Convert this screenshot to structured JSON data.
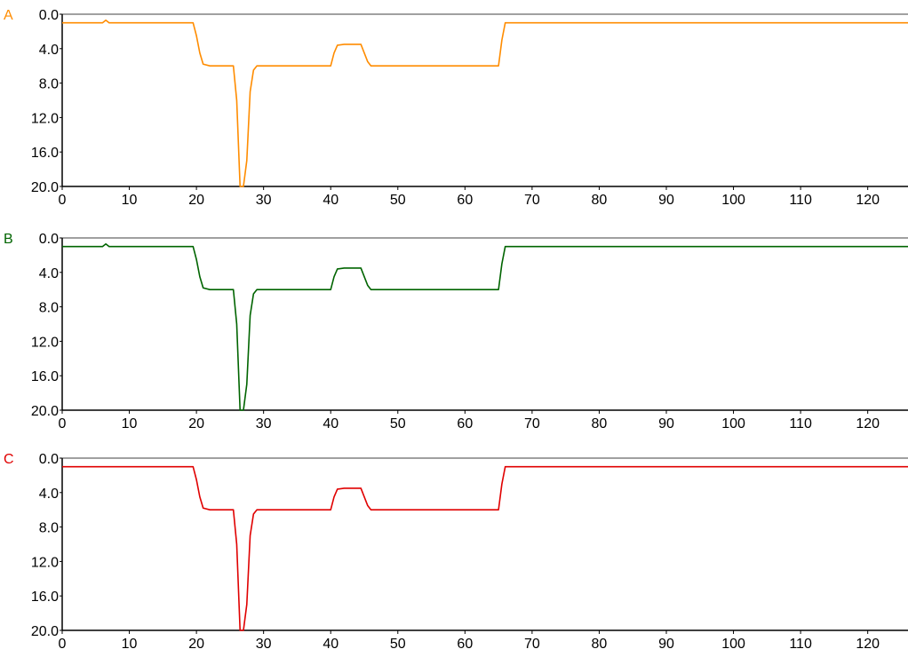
{
  "chart_data": [
    {
      "type": "line",
      "label": "A",
      "color": "#ff8c00",
      "xlim": [
        0,
        126
      ],
      "ylim": [
        0.0,
        20.0
      ],
      "y_inverted": true,
      "xticks": [
        0,
        10,
        20,
        30,
        40,
        50,
        60,
        70,
        80,
        90,
        100,
        110,
        120
      ],
      "yticks": [
        "0.0",
        "4.0",
        "8.0",
        "12.0",
        "16.0",
        "20.0"
      ],
      "grid": false,
      "series": [
        {
          "x": [
            0,
            6,
            6.5,
            7,
            19.5,
            20,
            20.5,
            21,
            22,
            25.5,
            26,
            26.5,
            27,
            27.5,
            28,
            28.5,
            29,
            40,
            40.5,
            41,
            42,
            44.5,
            45.5,
            46,
            65,
            65.5,
            66,
            126
          ],
          "y": [
            1.0,
            1.0,
            0.7,
            1.0,
            1.0,
            2.5,
            4.5,
            5.8,
            6.0,
            6.0,
            10.0,
            20.0,
            20.0,
            17.0,
            9.0,
            6.5,
            6.0,
            6.0,
            4.5,
            3.6,
            3.5,
            3.5,
            5.5,
            6.0,
            6.0,
            3.0,
            1.0,
            1.0
          ]
        }
      ]
    },
    {
      "type": "line",
      "label": "B",
      "color": "#006400",
      "xlim": [
        0,
        126
      ],
      "ylim": [
        0.0,
        20.0
      ],
      "y_inverted": true,
      "xticks": [
        0,
        10,
        20,
        30,
        40,
        50,
        60,
        70,
        80,
        90,
        100,
        110,
        120
      ],
      "yticks": [
        "0.0",
        "4.0",
        "8.0",
        "12.0",
        "16.0",
        "20.0"
      ],
      "grid": false,
      "series": [
        {
          "x": [
            0,
            6,
            6.5,
            7,
            19.5,
            20,
            20.5,
            21,
            22,
            25.5,
            26,
            26.5,
            27,
            27.5,
            28,
            28.5,
            29,
            40,
            40.5,
            41,
            42,
            44.5,
            45.5,
            46,
            65,
            65.5,
            66,
            126
          ],
          "y": [
            1.0,
            1.0,
            0.7,
            1.0,
            1.0,
            2.5,
            4.5,
            5.8,
            6.0,
            6.0,
            10.0,
            20.0,
            20.0,
            17.0,
            9.0,
            6.5,
            6.0,
            6.0,
            4.5,
            3.6,
            3.5,
            3.5,
            5.5,
            6.0,
            6.0,
            3.0,
            1.0,
            1.0
          ]
        }
      ]
    },
    {
      "type": "line",
      "label": "C",
      "color": "#e00000",
      "xlim": [
        0,
        126
      ],
      "ylim": [
        0.0,
        20.0
      ],
      "y_inverted": true,
      "xticks": [
        0,
        10,
        20,
        30,
        40,
        50,
        60,
        70,
        80,
        90,
        100,
        110,
        120
      ],
      "yticks": [
        "0.0",
        "4.0",
        "8.0",
        "12.0",
        "16.0",
        "20.0"
      ],
      "grid": false,
      "series": [
        {
          "x": [
            0,
            19.5,
            20,
            20.5,
            21,
            22,
            25.5,
            26,
            26.5,
            27,
            27.5,
            28,
            28.5,
            29,
            40,
            40.5,
            41,
            42,
            44.5,
            45.5,
            46,
            65,
            65.5,
            66,
            126
          ],
          "y": [
            1.0,
            1.0,
            2.5,
            4.5,
            5.8,
            6.0,
            6.0,
            10.0,
            20.0,
            20.0,
            17.0,
            9.0,
            6.5,
            6.0,
            6.0,
            4.5,
            3.6,
            3.5,
            3.5,
            5.5,
            6.0,
            6.0,
            3.0,
            1.0,
            1.0
          ]
        }
      ]
    }
  ],
  "style": {
    "axis_color": "#808080",
    "tick_text_color": "#000000",
    "background": "#ffffff"
  }
}
